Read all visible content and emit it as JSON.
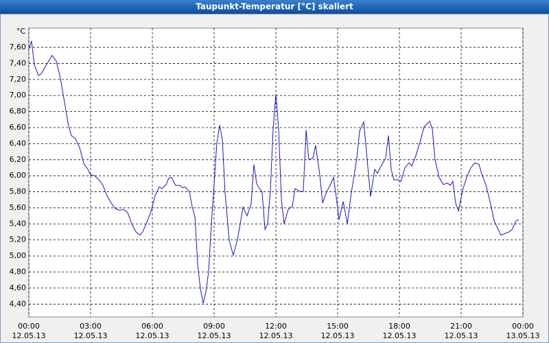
{
  "chart_data": {
    "type": "line",
    "title": "Taupunkt-Temperatur [°C] skaliert",
    "y_unit": "°C",
    "color": "#1414c8",
    "grid": true,
    "xlim": [
      0,
      24
    ],
    "xticks": [
      {
        "value": 0,
        "label": "00:00",
        "sublabel": "12.05.13"
      },
      {
        "value": 3,
        "label": "03:00",
        "sublabel": "12.05.13"
      },
      {
        "value": 6,
        "label": "06:00",
        "sublabel": "12.05.13"
      },
      {
        "value": 9,
        "label": "09:00",
        "sublabel": "12.05.13"
      },
      {
        "value": 12,
        "label": "12:00",
        "sublabel": "12.05.13"
      },
      {
        "value": 15,
        "label": "15:00",
        "sublabel": "12.05.13"
      },
      {
        "value": 18,
        "label": "18:00",
        "sublabel": "12.05.13"
      },
      {
        "value": 21,
        "label": "21:00",
        "sublabel": "12.05.13"
      },
      {
        "value": 24,
        "label": "00:00",
        "sublabel": "13.05.13"
      }
    ],
    "ylim": [
      4.24,
      7.84
    ],
    "yticks": [
      {
        "value": 4.4,
        "label": "4,40"
      },
      {
        "value": 4.6,
        "label": "4,60"
      },
      {
        "value": 4.8,
        "label": "4,80"
      },
      {
        "value": 5.0,
        "label": "5,00"
      },
      {
        "value": 5.2,
        "label": "5,20"
      },
      {
        "value": 5.4,
        "label": "5,40"
      },
      {
        "value": 5.6,
        "label": "5,60"
      },
      {
        "value": 5.8,
        "label": "5,80"
      },
      {
        "value": 6.0,
        "label": "6,00"
      },
      {
        "value": 6.2,
        "label": "6,20"
      },
      {
        "value": 6.4,
        "label": "6,40"
      },
      {
        "value": 6.6,
        "label": "6,60"
      },
      {
        "value": 6.8,
        "label": "6,80"
      },
      {
        "value": 7.0,
        "label": "7,00"
      },
      {
        "value": 7.2,
        "label": "7,20"
      },
      {
        "value": 7.4,
        "label": "7,40"
      },
      {
        "value": 7.6,
        "label": "7,60"
      }
    ],
    "x": [
      0,
      0.13,
      0.27,
      0.47,
      0.6,
      0.8,
      1.13,
      1.33,
      1.53,
      1.73,
      1.93,
      2.07,
      2.27,
      2.47,
      2.67,
      2.87,
      3,
      3.2,
      3.4,
      3.6,
      3.8,
      4,
      4.2,
      4.4,
      4.6,
      4.8,
      5,
      5.2,
      5.4,
      5.53,
      5.73,
      5.93,
      6.13,
      6.33,
      6.47,
      6.67,
      6.8,
      6.93,
      7.13,
      7.33,
      7.47,
      7.6,
      7.8,
      7.93,
      8.07,
      8.2,
      8.33,
      8.47,
      8.6,
      8.73,
      8.87,
      9,
      9.13,
      9.27,
      9.4,
      9.53,
      9.73,
      9.93,
      10.13,
      10.27,
      10.4,
      10.6,
      10.8,
      10.93,
      11.07,
      11.2,
      11.33,
      11.47,
      11.6,
      11.73,
      11.87,
      12,
      12.13,
      12.27,
      12.4,
      12.6,
      12.8,
      12.93,
      13.13,
      13.33,
      13.47,
      13.6,
      13.8,
      13.93,
      14.13,
      14.27,
      14.47,
      14.67,
      14.8,
      14.93,
      15.07,
      15.27,
      15.47,
      15.67,
      15.8,
      15.93,
      16.07,
      16.27,
      16.47,
      16.6,
      16.8,
      16.93,
      17.13,
      17.33,
      17.47,
      17.6,
      17.73,
      17.93,
      18.07,
      18.27,
      18.47,
      18.6,
      18.8,
      19,
      19.2,
      19.47,
      19.6,
      19.73,
      19.93,
      20.13,
      20.33,
      20.47,
      20.6,
      20.73,
      20.87,
      21.07,
      21.27,
      21.47,
      21.67,
      21.87,
      22,
      22.2,
      22.4,
      22.6,
      22.8,
      22.93,
      23.13,
      23.33,
      23.47,
      23.67,
      23.8
    ],
    "values": [
      7.58,
      7.68,
      7.38,
      7.25,
      7.27,
      7.36,
      7.5,
      7.43,
      7.22,
      6.92,
      6.62,
      6.5,
      6.46,
      6.35,
      6.15,
      6.08,
      6.01,
      6.0,
      5.95,
      5.88,
      5.75,
      5.66,
      5.59,
      5.57,
      5.58,
      5.54,
      5.4,
      5.3,
      5.26,
      5.3,
      5.42,
      5.55,
      5.75,
      5.86,
      5.84,
      5.89,
      5.97,
      5.98,
      5.88,
      5.88,
      5.85,
      5.86,
      5.8,
      5.62,
      5.48,
      4.9,
      4.6,
      4.41,
      4.55,
      4.8,
      5.4,
      5.9,
      6.4,
      6.63,
      6.45,
      5.8,
      5.2,
      5.01,
      5.2,
      5.4,
      5.61,
      5.5,
      5.65,
      6.14,
      5.9,
      5.84,
      5.8,
      5.33,
      5.4,
      5.8,
      6.6,
      7.02,
      6.6,
      5.7,
      5.4,
      5.58,
      5.62,
      5.84,
      5.81,
      5.8,
      6.57,
      6.2,
      6.22,
      6.38,
      6.02,
      5.66,
      5.8,
      5.9,
      5.98,
      5.74,
      5.45,
      5.68,
      5.4,
      5.8,
      6.0,
      6.22,
      6.56,
      6.67,
      6.1,
      5.74,
      6.08,
      6.03,
      6.13,
      6.22,
      6.5,
      6.08,
      5.95,
      5.95,
      5.93,
      6.1,
      6.16,
      6.12,
      6.25,
      6.42,
      6.61,
      6.68,
      6.58,
      6.2,
      5.98,
      5.89,
      5.91,
      5.88,
      5.93,
      5.66,
      5.56,
      5.82,
      5.98,
      6.1,
      6.16,
      6.14,
      6.02,
      5.89,
      5.68,
      5.44,
      5.33,
      5.26,
      5.28,
      5.3,
      5.33,
      5.44,
      5.45
    ]
  }
}
